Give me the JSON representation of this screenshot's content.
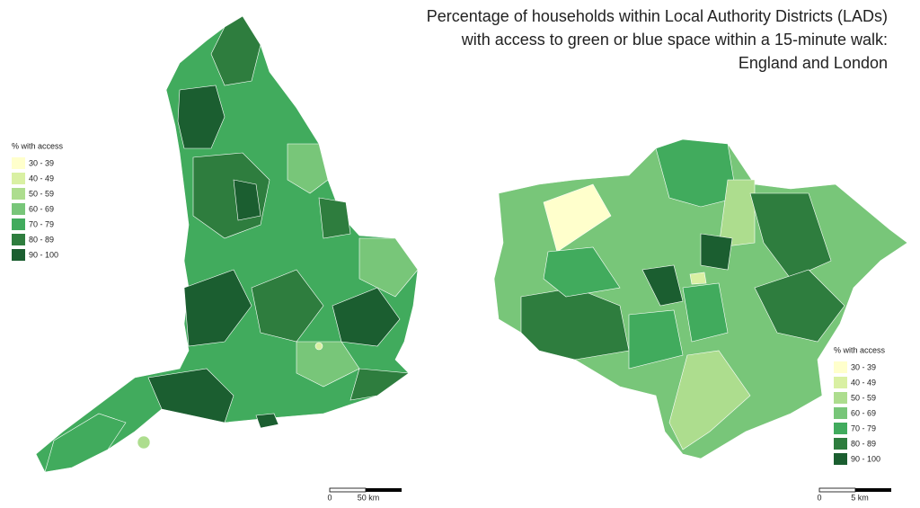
{
  "title": [
    "Percentage of households within Local Authority Districts (LADs)",
    "with access to green or blue space within a 15-minute walk:",
    "England and London"
  ],
  "maps": [
    {
      "name": "England",
      "legend": {
        "title": "% with access",
        "classes": [
          {
            "label": "30 - 39",
            "color": "#ffffcc"
          },
          {
            "label": "40 - 49",
            "color": "#d9f0a3"
          },
          {
            "label": "50 - 59",
            "color": "#addd8e"
          },
          {
            "label": "60 - 69",
            "color": "#78c679"
          },
          {
            "label": "70 - 79",
            "color": "#41ab5d"
          },
          {
            "label": "80 - 89",
            "color": "#2e7d3e"
          },
          {
            "label": "90 - 100",
            "color": "#1b5e30"
          }
        ]
      },
      "scale_bar": [
        "0",
        "50 km"
      ]
    },
    {
      "name": "London",
      "legend": {
        "title": "% with access",
        "classes": [
          {
            "label": "30 - 39",
            "color": "#ffffcc"
          },
          {
            "label": "40 - 49",
            "color": "#d9f0a3"
          },
          {
            "label": "50 - 59",
            "color": "#addd8e"
          },
          {
            "label": "60 - 69",
            "color": "#78c679"
          },
          {
            "label": "70 - 79",
            "color": "#41ab5d"
          },
          {
            "label": "80 - 89",
            "color": "#2e7d3e"
          },
          {
            "label": "90 - 100",
            "color": "#1b5e30"
          }
        ]
      },
      "scale_bar": [
        "0",
        "5 km"
      ]
    }
  ]
}
